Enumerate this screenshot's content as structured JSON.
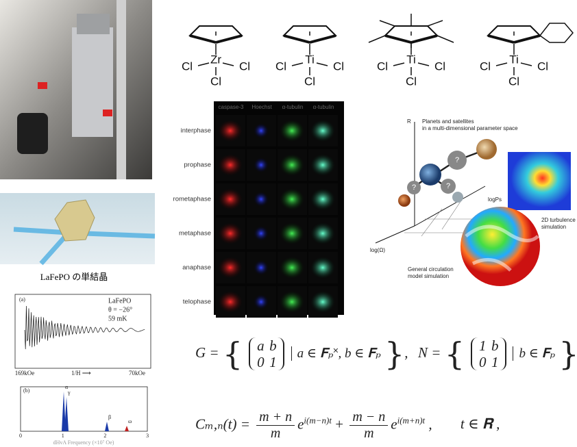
{
  "molecules": [
    {
      "metal": "Zr",
      "cl_left": "Cl",
      "cl_right": "Cl",
      "cl_bottom": "Cl"
    },
    {
      "metal": "Ti",
      "cl_left": "Cl",
      "cl_right": "Cl",
      "cl_bottom": "Cl"
    },
    {
      "metal": "Ti",
      "cl_left": "Cl",
      "cl_right": "Cl",
      "cl_bottom": "Cl"
    },
    {
      "metal": "Ti",
      "cl_left": "Cl",
      "cl_right": "Cl",
      "cl_bottom": "Cl"
    }
  ],
  "cell_grid": {
    "columns": [
      "caspase-3",
      "Hoechst",
      "α-tubulin",
      "α-tubulin"
    ],
    "rows": [
      "interphase",
      "prophase",
      "rometaphase",
      "metaphase",
      "anaphase",
      "telophase"
    ]
  },
  "planet_diagram": {
    "axis_r": "R",
    "axis_x": "logPs",
    "axis_z": "log(Ω)",
    "title_line1": "Planets and satellites",
    "title_line2": "in a multi-dimensional parameter space",
    "unknowns": [
      "?",
      "?",
      "?",
      "?"
    ],
    "turbulence_line1": "2D turbulence",
    "turbulence_line2": "simulation",
    "gcm_line1": "General circulation",
    "gcm_line2": "model simulation"
  },
  "crystal_caption": "LaFePO の単結晶",
  "dhva": {
    "panel_a": "(a)",
    "sample": "LaFePO",
    "angle": "θ = −26°",
    "temperature": "59 mK",
    "field_start": "169kOe",
    "field_axis": "1/H ⟶",
    "field_end": "70kOe",
    "panel_b": "(b)",
    "peaks": [
      "α",
      "γ",
      "β",
      "ω"
    ],
    "x_ticks": [
      "0",
      "1",
      "2",
      "3"
    ],
    "x_label": "dHvA Frequency (×10⁷ Oe)"
  },
  "equations": {
    "g_lhs": "G =",
    "g_matrix": [
      "a",
      "b",
      "0",
      "1"
    ],
    "g_condition": "a ∈ 𝐅ₚ˟, b ∈ 𝐅ₚ",
    "g_comma": ",",
    "n_lhs": "N =",
    "n_matrix": [
      "1",
      "b",
      "0",
      "1"
    ],
    "n_condition": "b ∈ 𝐅ₚ",
    "n_comma": ",",
    "c_lhs": "Cₘ,ₙ(t) =",
    "terms": [
      {
        "num": "m + n",
        "den": "m",
        "base": "e",
        "exponent": "i(m−n)t"
      },
      {
        "num": "m − n",
        "den": "m",
        "base": "e",
        "exponent": "i(m+n)t"
      }
    ],
    "plus": "+",
    "c_comma": ",",
    "domain": "t ∈ 𝐑 ,"
  }
}
